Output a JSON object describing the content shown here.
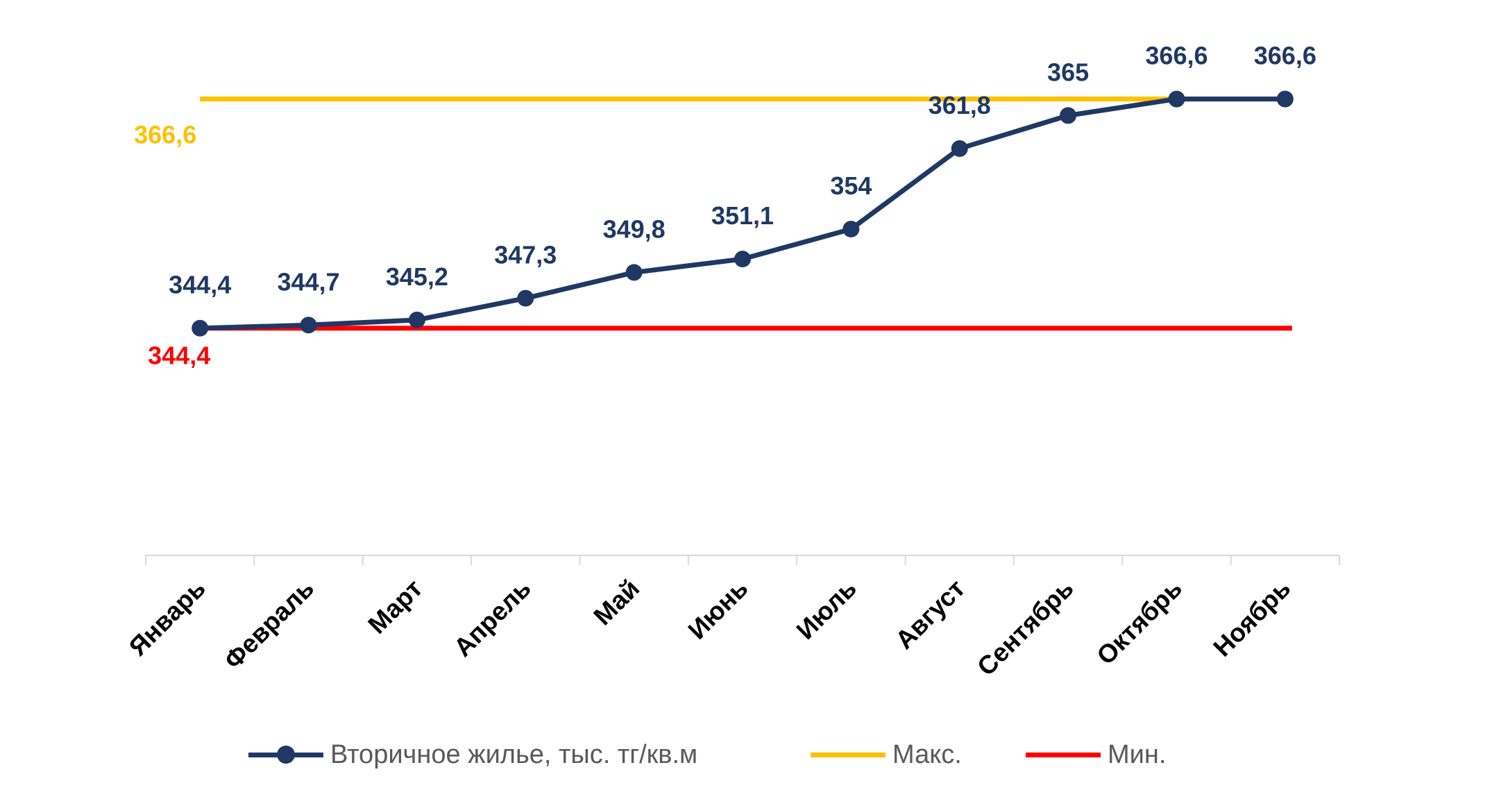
{
  "chart_data": {
    "type": "line",
    "categories": [
      "Январь",
      "Февраль",
      "Март",
      "Апрель",
      "Май",
      "Июнь",
      "Июль",
      "Август",
      "Сентябрь",
      "Октябрь",
      "Ноябрь"
    ],
    "series": [
      {
        "name": "Вторичное жилье, тыс. тг/кв.м",
        "color": "#1F3864",
        "values": [
          344.4,
          344.7,
          345.2,
          347.3,
          349.8,
          351.1,
          354,
          361.8,
          365,
          366.6,
          366.6
        ],
        "labels": [
          "344,4",
          "344,7",
          "345,2",
          "347,3",
          "349,8",
          "351,1",
          "354",
          "361,8",
          "365",
          "366,6",
          "366,6"
        ],
        "marker": "circle"
      },
      {
        "name": "Макс.",
        "color": "#FFC000",
        "value": 366.6,
        "label": "366,6"
      },
      {
        "name": "Мин.",
        "color": "#FF0000",
        "value": 344.4,
        "label": "344,4"
      }
    ],
    "title": "",
    "xlabel": "",
    "ylabel": "",
    "ylim": [
      322.39,
      373.5
    ],
    "grid": false,
    "y_axis_visible": false,
    "legend_position": "bottom",
    "axis_color": "#D9D9D9",
    "label_color_default": "#1F3864"
  }
}
